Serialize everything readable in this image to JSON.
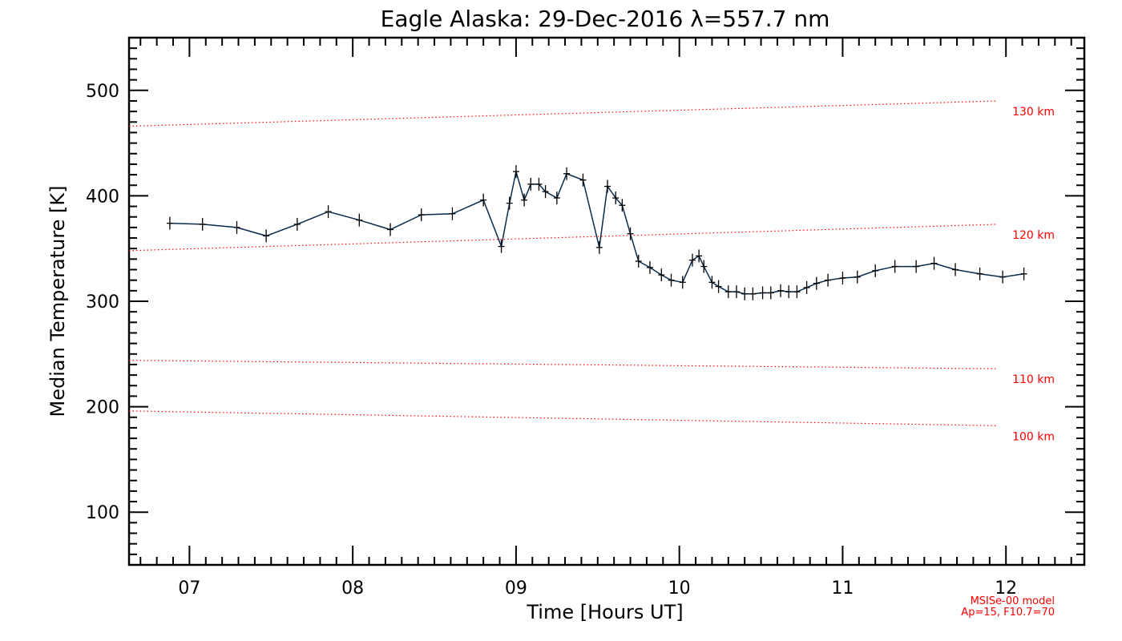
{
  "chart_data": {
    "type": "line",
    "title": "Eagle Alaska: 29-Dec-2016 λ=557.7 nm",
    "xlabel": "Time [Hours UT]",
    "ylabel": "Median Temperature [K]",
    "xlim": [
      6.63,
      12.48
    ],
    "ylim": [
      50,
      550
    ],
    "x_ticks": [
      7,
      8,
      9,
      10,
      11,
      12
    ],
    "x_tick_labels": [
      "07",
      "08",
      "09",
      "10",
      "11",
      "12"
    ],
    "y_ticks": [
      100,
      200,
      300,
      400,
      500
    ],
    "y_tick_labels": [
      "100",
      "200",
      "300",
      "400",
      "500"
    ],
    "grid": false,
    "series": [
      {
        "color": "#0a2a4a",
        "marker": "plus",
        "x": [
          6.88,
          7.08,
          7.29,
          7.47,
          7.66,
          7.85,
          8.04,
          8.23,
          8.42,
          8.61,
          8.8,
          8.91,
          8.96,
          9.0,
          9.05,
          9.09,
          9.14,
          9.18,
          9.25,
          9.31,
          9.41,
          9.51,
          9.56,
          9.61,
          9.65,
          9.7,
          9.75,
          9.82,
          9.89,
          9.95,
          10.02,
          10.08,
          10.12,
          10.15,
          10.2,
          10.24,
          10.3,
          10.35,
          10.4,
          10.45,
          10.51,
          10.56,
          10.62,
          10.67,
          10.72,
          10.78,
          10.84,
          10.91,
          11.0,
          11.09,
          11.2,
          11.32,
          11.45,
          11.56,
          11.69,
          11.84,
          11.98,
          12.11
        ],
        "y": [
          374,
          373,
          370,
          362,
          373,
          385,
          377,
          368,
          382,
          383,
          396,
          352,
          393,
          423,
          396,
          411,
          411,
          404,
          398,
          421,
          415,
          351,
          409,
          398,
          391,
          364,
          338,
          332,
          325,
          320,
          318,
          339,
          343,
          333,
          318,
          314,
          309,
          309,
          307,
          307,
          308,
          308,
          310,
          309,
          309,
          313,
          317,
          320,
          322,
          323,
          329,
          333,
          333,
          336,
          330,
          326,
          323,
          326
        ]
      }
    ],
    "model_curves": [
      {
        "label": "130 km",
        "color": "#ff0000",
        "x": [
          6.63,
          11.95
        ],
        "y": [
          466,
          490
        ]
      },
      {
        "label": "120 km",
        "color": "#ff0000",
        "x": [
          6.63,
          11.95
        ],
        "y": [
          348,
          373
        ]
      },
      {
        "label": "110 km",
        "color": "#ff0000",
        "x": [
          6.63,
          11.95
        ],
        "y": [
          244,
          236
        ]
      },
      {
        "label": "100 km",
        "color": "#ff0000",
        "x": [
          6.63,
          11.95
        ],
        "y": [
          196,
          182
        ]
      }
    ],
    "model_note": [
      "MSISe-00 model",
      "Ap=15, F10.7=70"
    ]
  }
}
